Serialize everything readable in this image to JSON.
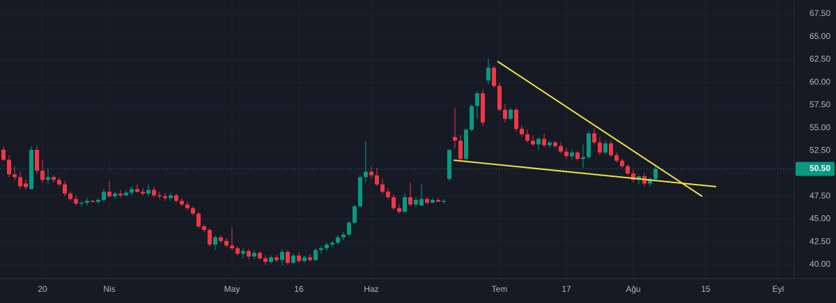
{
  "chart_data": {
    "type": "candlestick",
    "categories": [
      null,
      null,
      null,
      null,
      null,
      null,
      null,
      "20",
      null,
      null,
      null,
      null,
      null,
      null,
      null,
      null,
      null,
      null,
      null,
      "Nis",
      null,
      null,
      null,
      null,
      null,
      null,
      null,
      null,
      null,
      null,
      null,
      null,
      null,
      null,
      null,
      null,
      null,
      null,
      null,
      null,
      null,
      "May",
      null,
      null,
      null,
      null,
      null,
      null,
      null,
      null,
      null,
      null,
      null,
      "16",
      null,
      null,
      null,
      null,
      null,
      null,
      null,
      null,
      null,
      null,
      null,
      null,
      "Haz",
      null,
      null,
      null,
      null,
      null,
      null,
      null,
      null,
      null,
      null,
      null,
      null,
      null,
      null,
      null,
      null,
      null,
      null,
      null,
      null,
      null,
      null,
      "Tem",
      null,
      null,
      null,
      null,
      null,
      null,
      null,
      null,
      null,
      null,
      null,
      "17",
      null,
      null,
      null,
      null,
      null,
      null,
      null,
      null,
      null,
      null,
      null,
      "Ağu",
      null,
      null,
      null,
      null,
      null,
      null,
      null,
      null,
      null,
      null,
      null,
      null,
      "15",
      null,
      null,
      null,
      null,
      null,
      null,
      null,
      null,
      null,
      null,
      null,
      null,
      "Eyl"
    ],
    "open": [
      52.6,
      51.5,
      49.9,
      49.6,
      48.9,
      48.3,
      52.6,
      50.3,
      49.3,
      49.6,
      49.3,
      48.8,
      47.8,
      47.2,
      46.7,
      46.8,
      47.0,
      46.9,
      47.1,
      48.0,
      47.5,
      47.8,
      47.6,
      47.9,
      48.3,
      48.0,
      47.8,
      48.2,
      47.6,
      47.5,
      47.3,
      47.6,
      47.0,
      46.6,
      46.2,
      45.6,
      44.2,
      43.8,
      42.2,
      43.0,
      42.6,
      42.1,
      41.8,
      41.2,
      41.5,
      40.9,
      41.3,
      40.7,
      40.3,
      40.8,
      40.5,
      41.4,
      40.2,
      41.0,
      40.4,
      40.8,
      40.5,
      41.6,
      41.8,
      42.2,
      42.4,
      43.0,
      43.3,
      44.6,
      46.4,
      49.6,
      50.2,
      49.8,
      48.8,
      48.0,
      47.4,
      46.2,
      45.8,
      47.4,
      46.6,
      46.5,
      47.2,
      46.8,
      47.1,
      46.9,
      49.4,
      54.0,
      53.6,
      51.6,
      54.8,
      57.4,
      58.8,
      60.2,
      61.6,
      59.6,
      57.0,
      56.0,
      57.0,
      54.9,
      54.3,
      53.6,
      53.2,
      53.8,
      53.1,
      53.4,
      53.0,
      52.4,
      51.9,
      52.3,
      51.6,
      51.8,
      54.4,
      53.4,
      52.3,
      53.3,
      52.0,
      51.4,
      50.8,
      50.0,
      49.3,
      49.7,
      48.9,
      49.4,
      null,
      null,
      null,
      null,
      null,
      null,
      null,
      null,
      null,
      null,
      null,
      null,
      null,
      null,
      null,
      null,
      null,
      null,
      null,
      null,
      null,
      null
    ],
    "high": [
      53.0,
      52.0,
      50.8,
      50.2,
      49.4,
      53.0,
      53.0,
      51.5,
      50.5,
      49.8,
      49.6,
      49.2,
      48.0,
      47.6,
      47.0,
      47.3,
      47.1,
      47.3,
      48.3,
      49.2,
      48.0,
      48.2,
      48.1,
      48.6,
      48.8,
      48.4,
      48.8,
      48.5,
      48.0,
      47.9,
      47.9,
      47.8,
      47.3,
      46.9,
      46.4,
      45.8,
      44.4,
      44.0,
      43.2,
      43.2,
      42.9,
      44.0,
      42.0,
      41.8,
      41.7,
      41.6,
      41.5,
      41.0,
      41.0,
      41.1,
      41.7,
      41.6,
      41.2,
      41.4,
      41.0,
      41.2,
      41.8,
      42.0,
      42.4,
      42.6,
      43.2,
      43.6,
      44.8,
      46.6,
      49.8,
      53.6,
      50.8,
      50.6,
      49.4,
      48.4,
      47.7,
      46.6,
      47.8,
      49.0,
      47.4,
      48.8,
      47.4,
      47.3,
      47.3,
      47.2,
      52.6,
      57.2,
      54.2,
      55.0,
      57.6,
      59.0,
      59.2,
      62.6,
      61.8,
      60.0,
      57.6,
      57.2,
      57.2,
      55.3,
      54.8,
      54.2,
      54.0,
      54.4,
      53.6,
      53.6,
      53.4,
      52.8,
      52.6,
      52.5,
      53.2,
      54.6,
      55.0,
      54.0,
      53.6,
      53.6,
      52.3,
      51.6,
      51.0,
      50.4,
      49.8,
      50.0,
      49.6,
      50.9,
      null,
      null,
      null,
      null,
      null,
      null,
      null,
      null,
      null,
      null,
      null,
      null,
      null,
      null,
      null,
      null,
      null,
      null,
      null,
      null,
      null,
      null
    ],
    "low": [
      51.4,
      49.6,
      49.2,
      48.3,
      48.2,
      48.2,
      50.0,
      49.0,
      48.8,
      49.0,
      48.6,
      47.5,
      47.0,
      46.5,
      46.4,
      46.5,
      46.8,
      46.7,
      46.9,
      47.4,
      47.2,
      47.4,
      47.5,
      47.6,
      47.9,
      47.6,
      47.5,
      47.4,
      47.2,
      47.0,
      47.0,
      46.8,
      46.4,
      46.0,
      45.4,
      44.0,
      43.6,
      42.0,
      41.6,
      42.4,
      41.9,
      41.6,
      41.0,
      40.7,
      40.6,
      40.6,
      40.5,
      40.0,
      40.1,
      40.3,
      39.9,
      40.0,
      40.1,
      40.2,
      40.2,
      40.3,
      40.4,
      41.2,
      41.5,
      41.9,
      42.2,
      42.7,
      43.1,
      44.4,
      46.2,
      49.0,
      49.4,
      48.6,
      47.8,
      47.2,
      46.0,
      45.6,
      45.7,
      46.4,
      46.3,
      46.4,
      46.6,
      46.7,
      46.9,
      46.7,
      49.2,
      52.8,
      51.4,
      51.4,
      54.6,
      56.0,
      55.2,
      59.8,
      59.4,
      56.8,
      55.6,
      55.8,
      54.6,
      54.0,
      53.4,
      53.0,
      52.6,
      52.9,
      52.8,
      52.8,
      52.2,
      51.6,
      51.5,
      51.4,
      50.6,
      51.6,
      53.2,
      52.0,
      52.1,
      51.8,
      51.2,
      50.6,
      49.8,
      49.0,
      48.8,
      48.6,
      48.6,
      49.2,
      null,
      null,
      null,
      null,
      null,
      null,
      null,
      null,
      null,
      null,
      null,
      null,
      null,
      null,
      null,
      null,
      null,
      null,
      null,
      null,
      null,
      null
    ],
    "close": [
      51.5,
      49.9,
      49.6,
      48.6,
      48.5,
      52.6,
      50.3,
      49.3,
      49.6,
      49.3,
      48.8,
      47.8,
      47.2,
      46.7,
      46.8,
      47.0,
      46.9,
      47.1,
      48.0,
      47.5,
      47.8,
      47.6,
      47.9,
      48.3,
      48.0,
      47.8,
      48.2,
      47.6,
      47.5,
      47.3,
      47.6,
      47.0,
      46.6,
      46.2,
      45.6,
      44.2,
      43.8,
      42.2,
      43.0,
      42.6,
      42.1,
      41.8,
      41.2,
      41.5,
      40.9,
      41.3,
      40.7,
      40.3,
      40.8,
      40.5,
      41.4,
      40.2,
      41.0,
      40.4,
      40.8,
      40.5,
      41.6,
      41.8,
      42.2,
      42.4,
      43.0,
      43.3,
      44.6,
      46.4,
      49.6,
      50.2,
      49.8,
      48.8,
      48.0,
      47.4,
      46.2,
      45.8,
      47.4,
      46.6,
      47.1,
      47.2,
      46.8,
      47.1,
      46.9,
      47.0,
      52.6,
      53.6,
      51.6,
      54.8,
      57.4,
      58.8,
      55.6,
      61.6,
      59.6,
      57.0,
      56.0,
      57.0,
      54.9,
      54.3,
      53.6,
      53.2,
      53.8,
      53.1,
      53.4,
      53.0,
      52.4,
      51.9,
      52.3,
      51.6,
      51.8,
      54.4,
      53.4,
      52.3,
      53.3,
      52.0,
      51.4,
      50.8,
      50.0,
      49.3,
      49.7,
      48.9,
      49.4,
      50.5,
      null,
      null,
      null,
      null,
      null,
      null,
      null,
      null,
      null,
      null,
      null,
      null,
      null,
      null,
      null,
      null,
      null,
      null,
      null,
      null,
      null,
      null
    ],
    "up_color": "#089981",
    "down_color": "#f23645",
    "ylim": [
      38.47,
      69.03
    ],
    "yticks": [
      {
        "value": 40,
        "label": "40.00"
      },
      {
        "value": 42.5,
        "label": "42.50"
      },
      {
        "value": 45,
        "label": "45.00"
      },
      {
        "value": 47.5,
        "label": "47.50"
      },
      {
        "value": 50,
        "label": "50.00"
      },
      {
        "value": 52.5,
        "label": "52.50"
      },
      {
        "value": 55,
        "label": "55.00"
      },
      {
        "value": 57.5,
        "label": "57.50"
      },
      {
        "value": 60,
        "label": "60.00"
      },
      {
        "value": 62.5,
        "label": "62.50"
      },
      {
        "value": 65,
        "label": "65.00"
      },
      {
        "value": 67.5,
        "label": "67.50"
      }
    ],
    "last_price": {
      "value": 50.5,
      "label": "50.50"
    },
    "grid": true
  }
}
